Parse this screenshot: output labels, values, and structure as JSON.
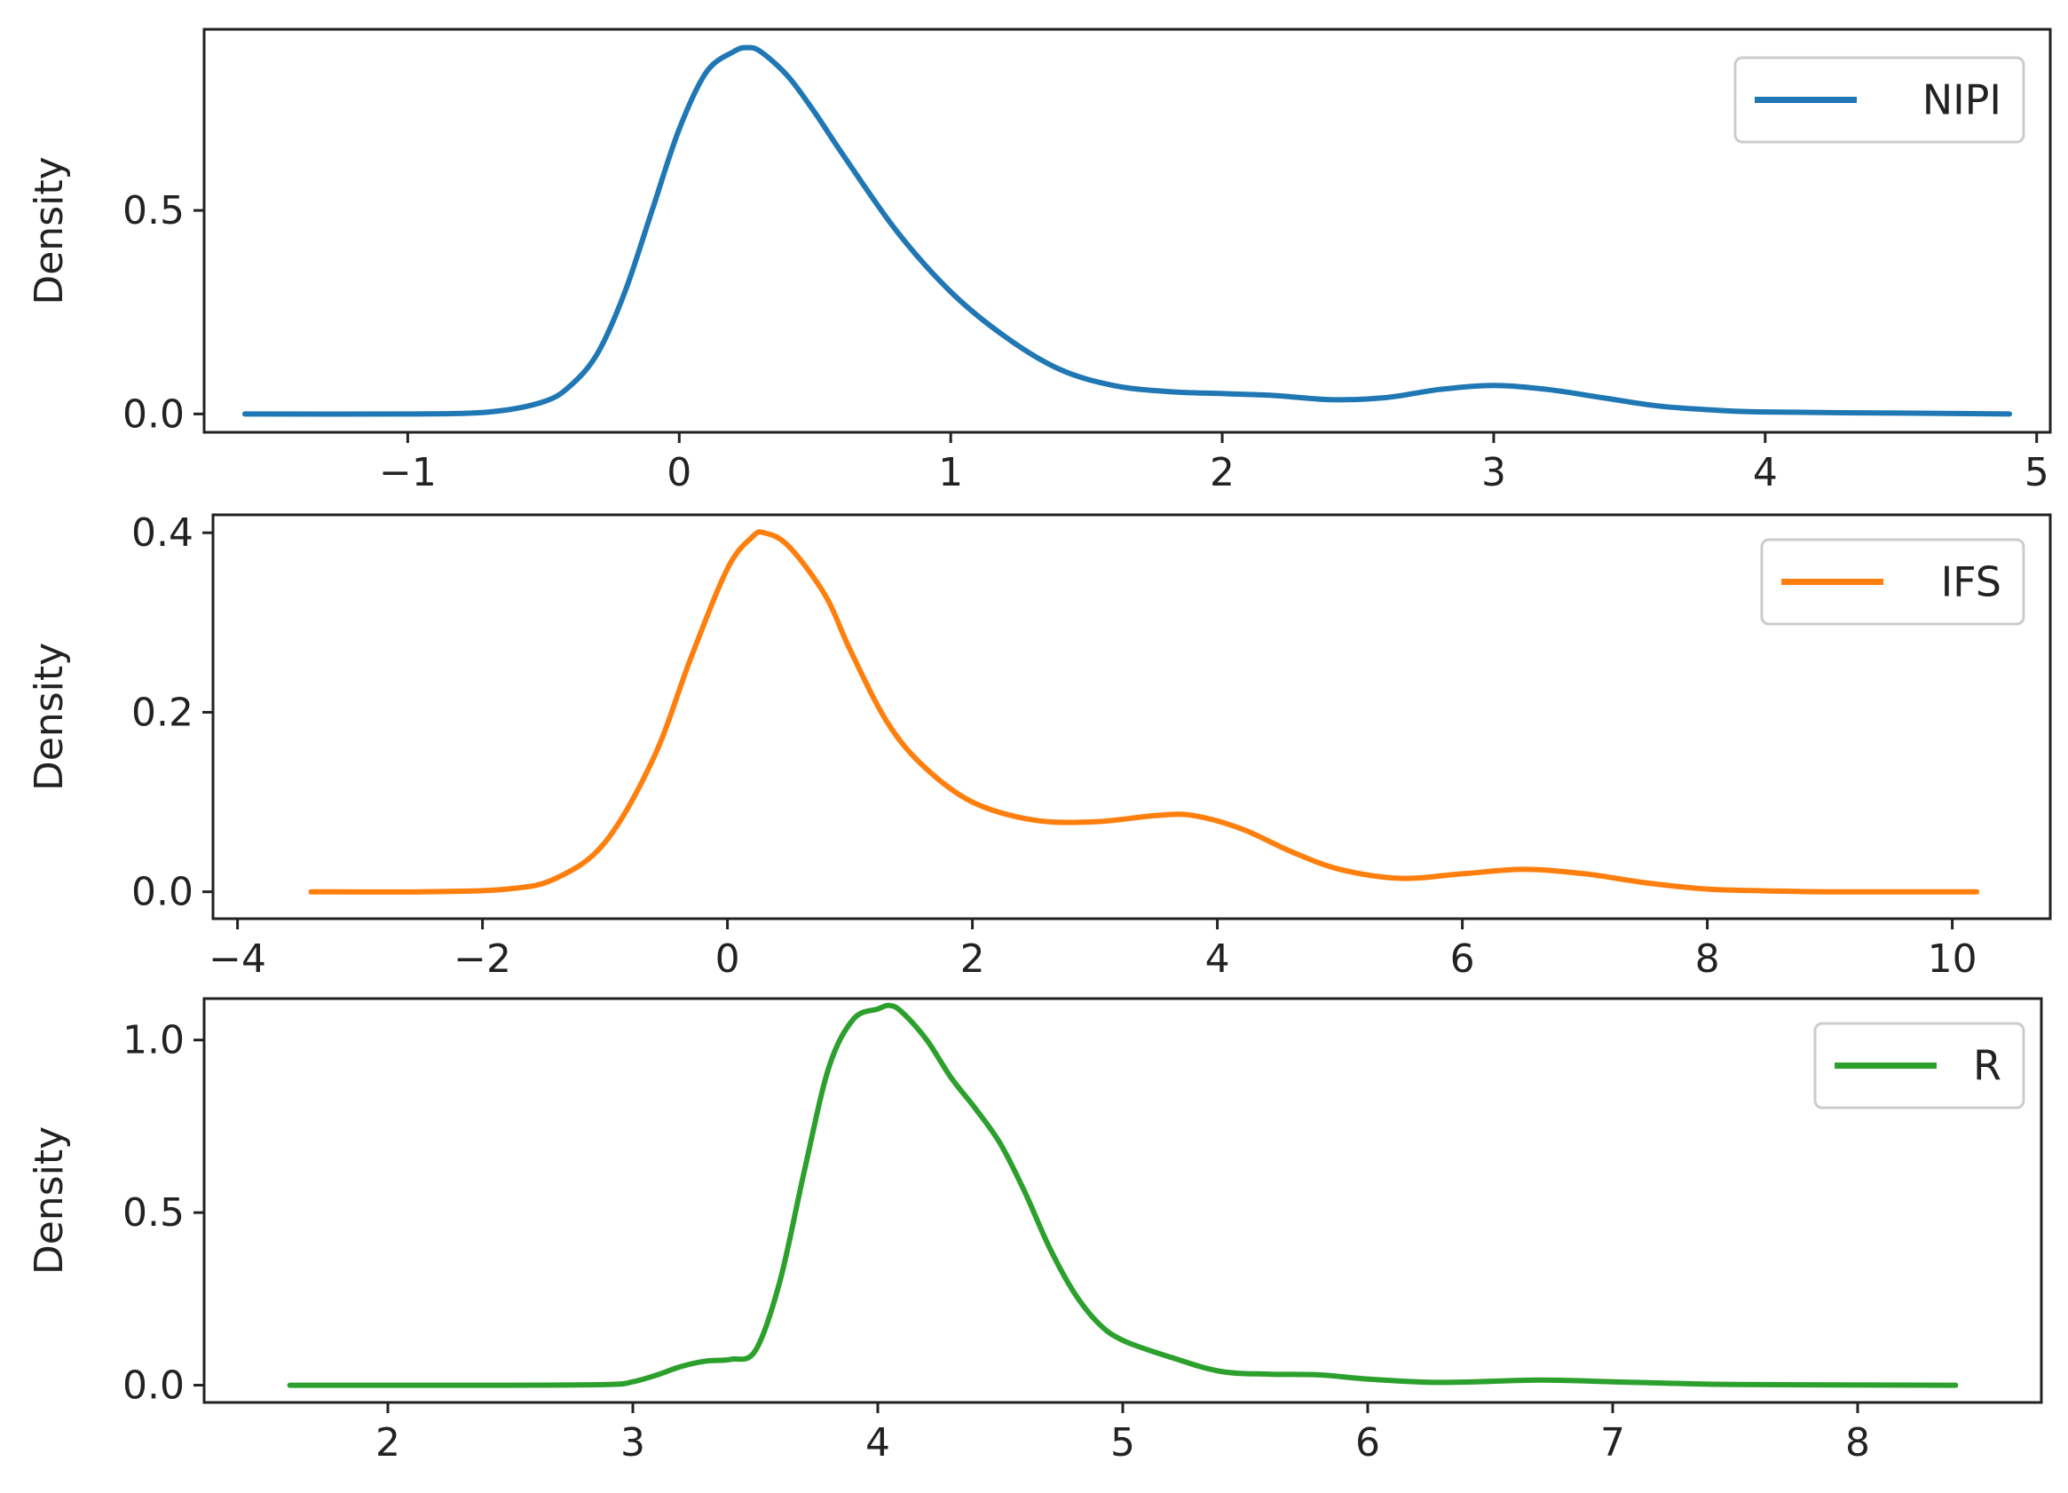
{
  "chart_data": [
    {
      "type": "line",
      "ylabel": "Density",
      "xlim": [
        -1.75,
        5.05
      ],
      "ylim": [
        -0.045,
        0.945
      ],
      "xticks": [
        -1,
        0,
        1,
        2,
        3,
        4,
        5
      ],
      "xtick_labels": [
        "−1",
        "0",
        "1",
        "2",
        "3",
        "4",
        "5"
      ],
      "yticks": [
        0.0,
        0.5
      ],
      "ytick_labels": [
        "0.0",
        "0.5"
      ],
      "grid": false,
      "legend_position": "top-right",
      "series": [
        {
          "name": "NIPI",
          "color": "#1f77b4",
          "x": [
            -1.6,
            -1.0,
            -0.7,
            -0.5,
            -0.4,
            -0.3,
            -0.2,
            -0.1,
            0.0,
            0.1,
            0.2,
            0.25,
            0.3,
            0.4,
            0.5,
            0.6,
            0.8,
            1.0,
            1.2,
            1.4,
            1.6,
            1.8,
            2.0,
            2.2,
            2.4,
            2.6,
            2.8,
            3.0,
            3.2,
            3.4,
            3.6,
            3.8,
            4.0,
            4.5,
            4.9
          ],
          "y": [
            0.0,
            0.0,
            0.005,
            0.03,
            0.07,
            0.15,
            0.3,
            0.5,
            0.7,
            0.84,
            0.89,
            0.9,
            0.89,
            0.83,
            0.74,
            0.64,
            0.45,
            0.3,
            0.19,
            0.11,
            0.07,
            0.055,
            0.05,
            0.045,
            0.035,
            0.04,
            0.06,
            0.07,
            0.06,
            0.04,
            0.02,
            0.01,
            0.005,
            0.002,
            0.0
          ]
        }
      ]
    },
    {
      "type": "line",
      "ylabel": "Density",
      "xlim": [
        -4.2,
        10.8
      ],
      "ylim": [
        -0.03,
        0.42
      ],
      "xticks": [
        -4,
        -2,
        0,
        2,
        4,
        6,
        8,
        10
      ],
      "xtick_labels": [
        "−4",
        "−2",
        "0",
        "2",
        "4",
        "6",
        "8",
        "10"
      ],
      "yticks": [
        0.0,
        0.2,
        0.4
      ],
      "ytick_labels": [
        "0.0",
        "0.2",
        "0.4"
      ],
      "grid": false,
      "legend_position": "top-right",
      "series": [
        {
          "name": "IFS",
          "color": "#ff7f0e",
          "x": [
            -3.4,
            -2.5,
            -1.8,
            -1.4,
            -1.0,
            -0.6,
            -0.3,
            0.0,
            0.2,
            0.3,
            0.5,
            0.8,
            1.0,
            1.3,
            1.6,
            2.0,
            2.5,
            3.0,
            3.5,
            3.8,
            4.2,
            4.6,
            5.0,
            5.5,
            6.0,
            6.5,
            7.0,
            7.5,
            8.0,
            8.5,
            9.0,
            10.2
          ],
          "y": [
            0.0,
            0.0,
            0.003,
            0.015,
            0.055,
            0.15,
            0.26,
            0.36,
            0.395,
            0.4,
            0.385,
            0.33,
            0.27,
            0.19,
            0.14,
            0.1,
            0.08,
            0.078,
            0.085,
            0.085,
            0.07,
            0.045,
            0.025,
            0.015,
            0.02,
            0.025,
            0.02,
            0.01,
            0.003,
            0.001,
            0.0,
            0.0
          ]
        }
      ]
    },
    {
      "type": "line",
      "ylabel": "Density",
      "xlim": [
        1.25,
        8.75
      ],
      "ylim": [
        -0.05,
        1.12
      ],
      "xticks": [
        2,
        3,
        4,
        5,
        6,
        7,
        8
      ],
      "xtick_labels": [
        "2",
        "3",
        "4",
        "5",
        "6",
        "7",
        "8"
      ],
      "yticks": [
        0.0,
        0.5,
        1.0
      ],
      "ytick_labels": [
        "0.0",
        "0.5",
        "1.0"
      ],
      "grid": false,
      "legend_position": "top-right",
      "series": [
        {
          "name": "R",
          "color": "#2ca02c",
          "x": [
            1.6,
            2.5,
            2.9,
            3.0,
            3.1,
            3.2,
            3.3,
            3.4,
            3.5,
            3.6,
            3.7,
            3.8,
            3.9,
            4.0,
            4.05,
            4.1,
            4.2,
            4.3,
            4.4,
            4.5,
            4.6,
            4.7,
            4.8,
            4.9,
            5.0,
            5.2,
            5.4,
            5.6,
            5.8,
            6.0,
            6.3,
            6.7,
            7.0,
            7.5,
            8.4
          ],
          "y": [
            0.0,
            0.0,
            0.002,
            0.01,
            0.03,
            0.055,
            0.07,
            0.075,
            0.1,
            0.3,
            0.62,
            0.92,
            1.06,
            1.09,
            1.1,
            1.08,
            1.0,
            0.89,
            0.8,
            0.7,
            0.56,
            0.4,
            0.27,
            0.18,
            0.13,
            0.08,
            0.04,
            0.032,
            0.03,
            0.018,
            0.008,
            0.015,
            0.01,
            0.002,
            0.0
          ]
        }
      ]
    }
  ]
}
